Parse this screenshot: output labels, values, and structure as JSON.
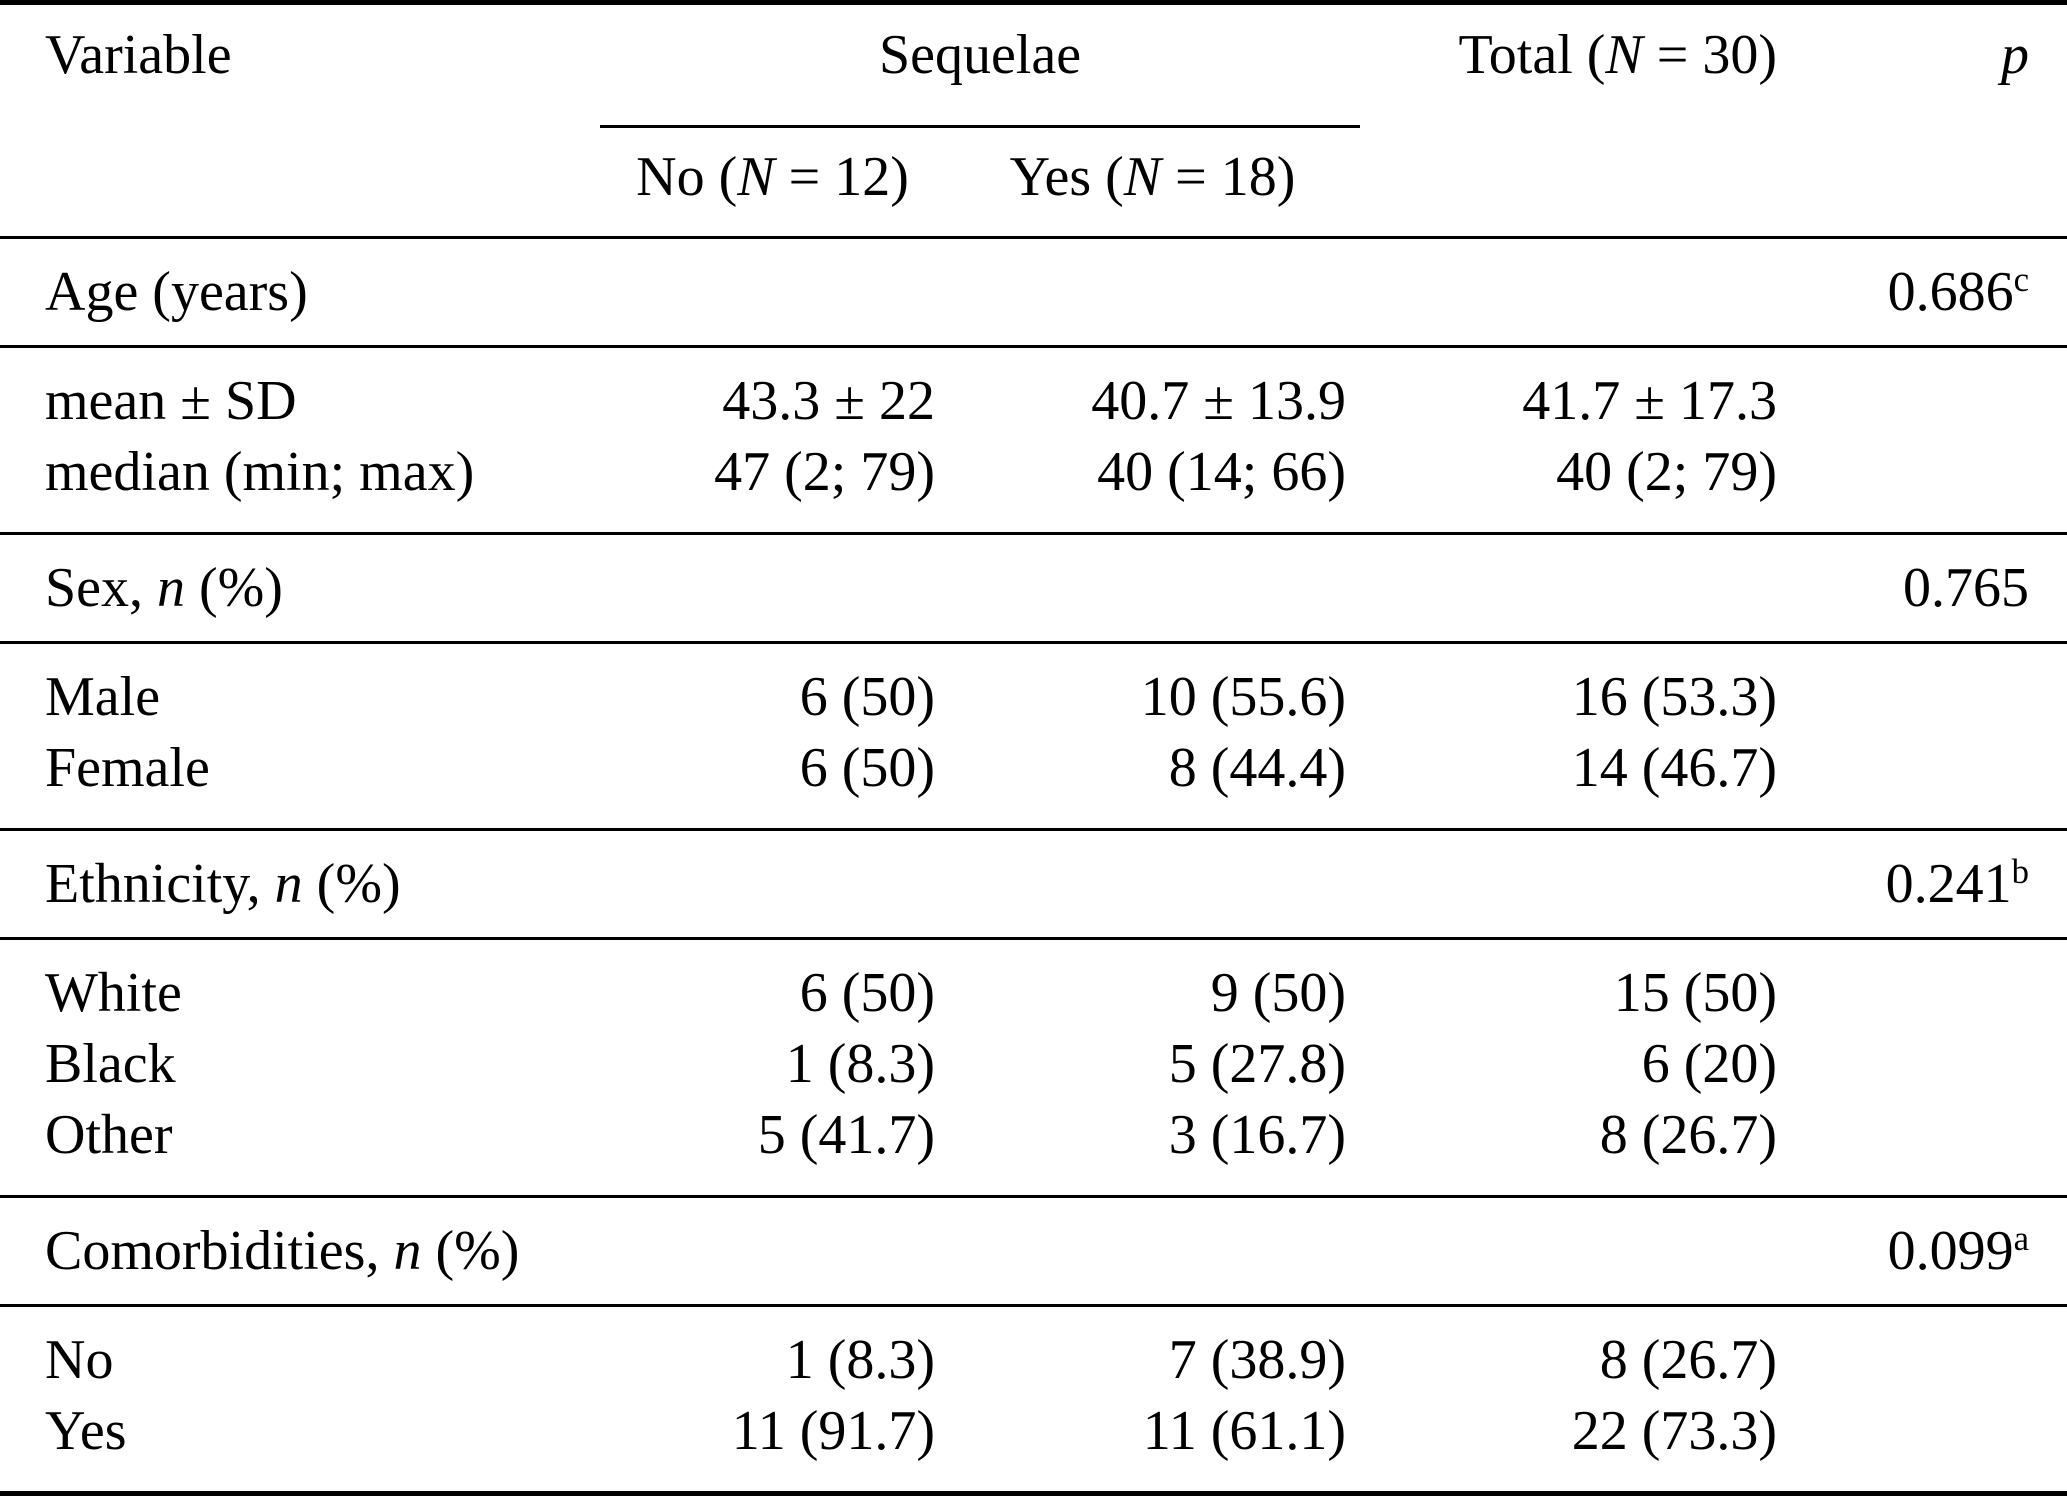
{
  "table": {
    "header": {
      "variable": "Variable",
      "sequelae": "Sequelae",
      "no_pre": "No (",
      "no_it": "N",
      "no_post": " = 12)",
      "yes_pre": "Yes (",
      "yes_it": "N",
      "yes_post": " = 18)",
      "total_pre": "Total (",
      "total_it": "N",
      "total_post": " = 30)",
      "p": "p"
    },
    "sections": [
      {
        "label_pre": "Age (years)",
        "label_it": "",
        "label_post": "",
        "p_value": "0.686",
        "p_sup": "c",
        "rows": [
          {
            "label": "mean ± SD",
            "no": "43.3 ± 22",
            "yes": "40.7 ± 13.9",
            "total": "41.7 ± 17.3"
          },
          {
            "label": "median (min; max)",
            "no": "47 (2; 79)",
            "yes": "40 (14; 66)",
            "total": "40 (2; 79)"
          }
        ]
      },
      {
        "label_pre": "Sex, ",
        "label_it": "n",
        "label_post": " (%)",
        "p_value": "0.765",
        "p_sup": "",
        "rows": [
          {
            "label": "Male",
            "no": "6 (50)",
            "yes": "10 (55.6)",
            "total": "16 (53.3)"
          },
          {
            "label": "Female",
            "no": "6 (50)",
            "yes": "8 (44.4)",
            "total": "14 (46.7)"
          }
        ]
      },
      {
        "label_pre": "Ethnicity, ",
        "label_it": "n",
        "label_post": " (%)",
        "p_value": "0.241",
        "p_sup": "b",
        "rows": [
          {
            "label": "White",
            "no": "6 (50)",
            "yes": "9 (50)",
            "total": "15 (50)"
          },
          {
            "label": "Black",
            "no": "1 (8.3)",
            "yes": "5 (27.8)",
            "total": "6 (20)"
          },
          {
            "label": "Other",
            "no": "5 (41.7)",
            "yes": "3 (16.7)",
            "total": "8 (26.7)"
          }
        ]
      },
      {
        "label_pre": "Comorbidities, ",
        "label_it": "n",
        "label_post": " (%)",
        "p_value": "0.099",
        "p_sup": "a",
        "rows": [
          {
            "label": "No",
            "no": "1 (8.3)",
            "yes": "7 (38.9)",
            "total": "8 (26.7)"
          },
          {
            "label": "Yes",
            "no": "11 (91.7)",
            "yes": "11 (61.1)",
            "total": "22 (73.3)"
          }
        ]
      }
    ]
  }
}
